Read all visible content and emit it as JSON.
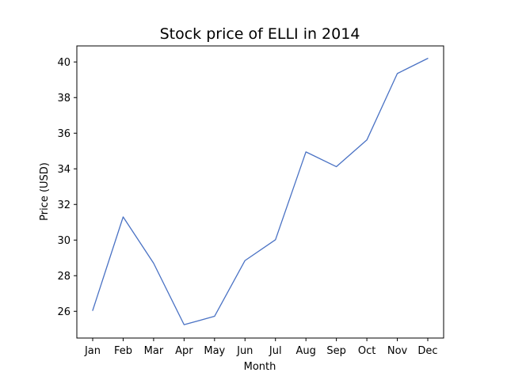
{
  "chart_data": {
    "type": "line",
    "title": "Stock price of ELLI in 2014",
    "xlabel": "Month",
    "ylabel": "Price (USD)",
    "categories": [
      "Jan",
      "Feb",
      "Mar",
      "Apr",
      "May",
      "Jun",
      "Jul",
      "Aug",
      "Sep",
      "Oct",
      "Nov",
      "Dec"
    ],
    "series": [
      {
        "values": [
          26.05,
          31.3,
          28.7,
          25.25,
          25.72,
          28.85,
          30.02,
          34.95,
          34.12,
          35.62,
          39.35,
          40.2
        ]
      }
    ],
    "ylim": [
      24.5,
      40.9
    ],
    "yticks": [
      26,
      28,
      30,
      32,
      34,
      36,
      38,
      40
    ],
    "grid": false,
    "line_color": "#4a72c4"
  }
}
